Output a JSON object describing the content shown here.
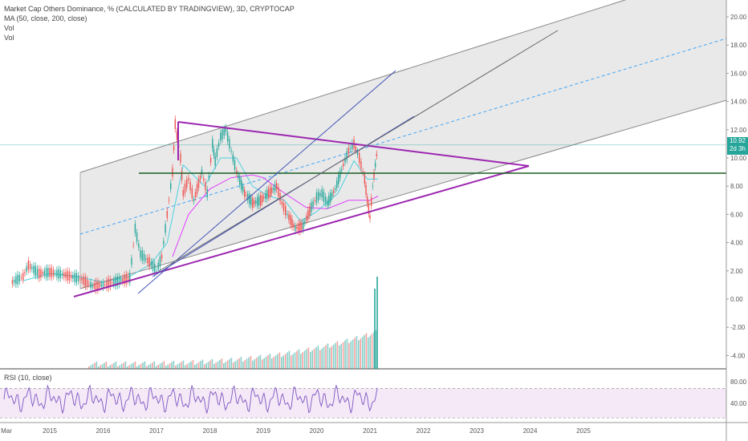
{
  "legend": {
    "title": "Market Cap Others Dominance, % (CALCULATED BY TRADINGVIEW), 3D, CRYPTOCAP",
    "ma": "MA (50, close, 200, close)",
    "vol1": "Vol",
    "vol2": "Vol"
  },
  "rsi_label": "RSI (10, close)",
  "price_tag": {
    "value": "10.92",
    "countdown": "2d 3h"
  },
  "colors": {
    "up": "#26a69a",
    "down": "#ef5350",
    "triangle": "#9c27b0",
    "fan": "#3f51b5",
    "channel_fill": "#e0e0e0",
    "ma_fast": "#4dd0e1",
    "ma_slow": "#e040fb",
    "rsi": "#7e57c2"
  },
  "chart_data": {
    "type": "line",
    "x_ticks": [
      "Mar",
      "2015",
      "2016",
      "2017",
      "2018",
      "2019",
      "2020",
      "2021",
      "2022",
      "2023",
      "2024",
      "2025"
    ],
    "y_ticks": [
      "20.00",
      "18.00",
      "16.00",
      "14.00",
      "12.00",
      "10.00",
      "8.00",
      "6.00",
      "4.00",
      "2.00",
      "0.00",
      "-2.00",
      "-4.00"
    ],
    "rsi_ticks": [
      "80.00",
      "40.00"
    ],
    "last_value": 10.92,
    "price_series": [
      [
        2014.3,
        1.2
      ],
      [
        2014.5,
        1.6
      ],
      [
        2014.6,
        2.4
      ],
      [
        2014.8,
        1.8
      ],
      [
        2015.0,
        1.9
      ],
      [
        2015.3,
        1.7
      ],
      [
        2015.6,
        1.4
      ],
      [
        2015.8,
        0.9
      ],
      [
        2016.0,
        1.0
      ],
      [
        2016.3,
        1.3
      ],
      [
        2016.5,
        1.5
      ],
      [
        2016.6,
        5.0
      ],
      [
        2016.7,
        3.2
      ],
      [
        2016.9,
        2.5
      ],
      [
        2017.0,
        2.0
      ],
      [
        2017.1,
        3.0
      ],
      [
        2017.2,
        6.0
      ],
      [
        2017.3,
        9.0
      ],
      [
        2017.35,
        12.4
      ],
      [
        2017.45,
        10.0
      ],
      [
        2017.5,
        7.5
      ],
      [
        2017.6,
        8.5
      ],
      [
        2017.7,
        7.0
      ],
      [
        2017.85,
        9.0
      ],
      [
        2017.95,
        7.5
      ],
      [
        2018.05,
        11.0
      ],
      [
        2018.1,
        9.8
      ],
      [
        2018.2,
        11.5
      ],
      [
        2018.3,
        12.0
      ],
      [
        2018.4,
        10.5
      ],
      [
        2018.5,
        9.0
      ],
      [
        2018.65,
        7.5
      ],
      [
        2018.8,
        6.8
      ],
      [
        2018.95,
        7.0
      ],
      [
        2019.1,
        7.5
      ],
      [
        2019.25,
        8.0
      ],
      [
        2019.35,
        6.8
      ],
      [
        2019.45,
        6.0
      ],
      [
        2019.6,
        5.0
      ],
      [
        2019.75,
        5.2
      ],
      [
        2019.9,
        6.5
      ],
      [
        2020.0,
        7.2
      ],
      [
        2020.1,
        7.5
      ],
      [
        2020.2,
        6.8
      ],
      [
        2020.35,
        7.8
      ],
      [
        2020.5,
        9.5
      ],
      [
        2020.6,
        10.5
      ],
      [
        2020.7,
        11.0
      ],
      [
        2020.8,
        10.0
      ],
      [
        2020.9,
        8.5
      ],
      [
        2020.95,
        7.0
      ],
      [
        2021.0,
        5.8
      ],
      [
        2021.05,
        8.0
      ],
      [
        2021.1,
        9.5
      ],
      [
        2021.15,
        10.92
      ]
    ],
    "ma50": [
      [
        2014.5,
        1.3
      ],
      [
        2015.0,
        1.8
      ],
      [
        2015.5,
        1.6
      ],
      [
        2016.0,
        1.2
      ],
      [
        2016.5,
        1.6
      ],
      [
        2016.9,
        2.5
      ],
      [
        2017.2,
        4.0
      ],
      [
        2017.5,
        9.5
      ],
      [
        2017.9,
        8.0
      ],
      [
        2018.2,
        10.0
      ],
      [
        2018.5,
        10.0
      ],
      [
        2018.8,
        8.0
      ],
      [
        2019.1,
        7.3
      ],
      [
        2019.4,
        7.0
      ],
      [
        2019.7,
        5.5
      ],
      [
        2020.0,
        6.2
      ],
      [
        2020.4,
        7.5
      ],
      [
        2020.7,
        9.8
      ],
      [
        2020.95,
        8.5
      ],
      [
        2021.15,
        8.5
      ]
    ],
    "ma200": [
      [
        2017.3,
        3.0
      ],
      [
        2017.6,
        6.0
      ],
      [
        2018.0,
        7.8
      ],
      [
        2018.4,
        8.6
      ],
      [
        2018.8,
        8.8
      ],
      [
        2019.0,
        8.6
      ],
      [
        2019.4,
        7.5
      ],
      [
        2019.8,
        6.5
      ],
      [
        2020.2,
        6.4
      ],
      [
        2020.6,
        7.0
      ],
      [
        2021.0,
        7.0
      ],
      [
        2021.15,
        7.3
      ]
    ]
  }
}
